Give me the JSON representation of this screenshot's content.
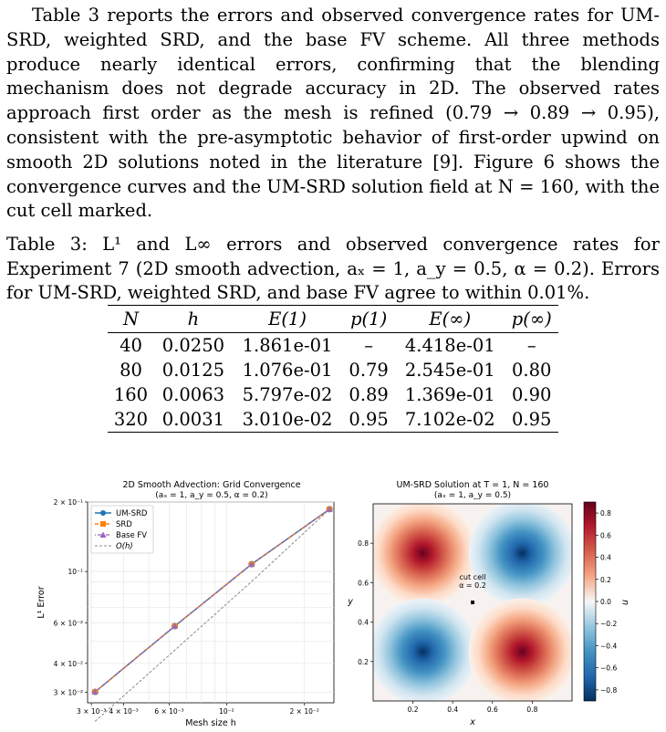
{
  "paragraph": "Table 3 reports the errors and observed convergence rates for UM-SRD, weighted SRD, and the base FV scheme. All three methods produce nearly identical errors, confirming that the blending mechanism does not degrade accuracy in 2D. The observed rates approach first order as the mesh is refined (0.79 → 0.89 → 0.95), consistent with the pre-asymptotic behavior of first-order upwind on smooth 2D solutions noted in the literature [9]. Figure 6 shows the convergence curves and the UM-SRD solution field at N = 160, with the cut cell marked.",
  "caption": "Table 3: L¹ and L∞ errors and observed convergence rates for Experiment 7 (2D smooth advection, aₓ = 1, a_y = 0.5, α = 0.2). Errors for UM-SRD, weighted SRD, and base FV agree to within 0.01%.",
  "table": {
    "headers": [
      "N",
      "h",
      "E(1)",
      "p(1)",
      "E(∞)",
      "p(∞)"
    ],
    "rows": [
      [
        "40",
        "0.0250",
        "1.861e-01",
        "–",
        "4.418e-01",
        "–"
      ],
      [
        "80",
        "0.0125",
        "1.076e-01",
        "0.79",
        "2.545e-01",
        "0.80"
      ],
      [
        "160",
        "0.0063",
        "5.797e-02",
        "0.89",
        "1.369e-01",
        "0.90"
      ],
      [
        "320",
        "0.0031",
        "3.010e-02",
        "0.95",
        "7.102e-02",
        "0.95"
      ]
    ]
  },
  "chart_data": [
    {
      "type": "line",
      "title": "2D Smooth Advection: Grid Convergence",
      "subtitle": "(aₓ = 1, a_y = 0.5, α = 0.2)",
      "xlabel": "Mesh size h",
      "ylabel": "L¹ Error",
      "xscale": "log",
      "yscale": "log",
      "xlim": [
        0.0029,
        0.026
      ],
      "ylim": [
        0.027,
        0.2
      ],
      "xticks": [
        "3 × 10⁻³",
        "4 × 10⁻³",
        "6 × 10⁻³",
        "10⁻²",
        "2 × 10⁻²"
      ],
      "yticks": [
        "2 × 10⁻¹",
        "10⁻¹",
        "6 × 10⁻²",
        "4 × 10⁻²",
        "3 × 10⁻²"
      ],
      "grid": true,
      "legend_position": "top-left",
      "x": [
        0.0031,
        0.0063,
        0.0125,
        0.025
      ],
      "series": [
        {
          "name": "UM-SRD",
          "values": [
            0.0301,
            0.05797,
            0.1076,
            0.1861
          ],
          "color": "#1f77b4"
        },
        {
          "name": "SRD",
          "values": [
            0.0301,
            0.05797,
            0.1076,
            0.1861
          ],
          "color": "#ff7f0e"
        },
        {
          "name": "Base FV",
          "values": [
            0.0301,
            0.05797,
            0.1076,
            0.1861
          ],
          "color": "#9467bd"
        },
        {
          "name": "O(h)",
          "values": [
            0.02243,
            0.0456,
            0.09046,
            0.1861
          ],
          "color": "#888888"
        }
      ]
    },
    {
      "type": "heatmap",
      "title": "UM-SRD Solution at T = 1, N = 160",
      "subtitle": "(aₓ = 1, a_y = 0.5)",
      "xlabel": "x",
      "ylabel": "y",
      "xlim": [
        0,
        1
      ],
      "ylim": [
        0,
        1
      ],
      "xticks": [
        "0.2",
        "0.4",
        "0.6",
        "0.8"
      ],
      "yticks": [
        "0.2",
        "0.4",
        "0.6",
        "0.8"
      ],
      "colorbar_label": "u",
      "colorbar_ticks": [
        "0.8",
        "0.6",
        "0.4",
        "0.2",
        "0.0",
        "−0.2",
        "−0.4",
        "−0.6",
        "−0.8"
      ],
      "peaks": [
        {
          "x": 0.25,
          "y": 0.75,
          "value": 0.9
        },
        {
          "x": 0.75,
          "y": 0.75,
          "value": -0.9
        },
        {
          "x": 0.25,
          "y": 0.25,
          "value": -0.9
        },
        {
          "x": 0.75,
          "y": 0.25,
          "value": 0.9
        }
      ],
      "cut_cell": {
        "x": 0.5,
        "y": 0.5,
        "label": "cut cell",
        "label2": "α = 0.2"
      }
    }
  ]
}
